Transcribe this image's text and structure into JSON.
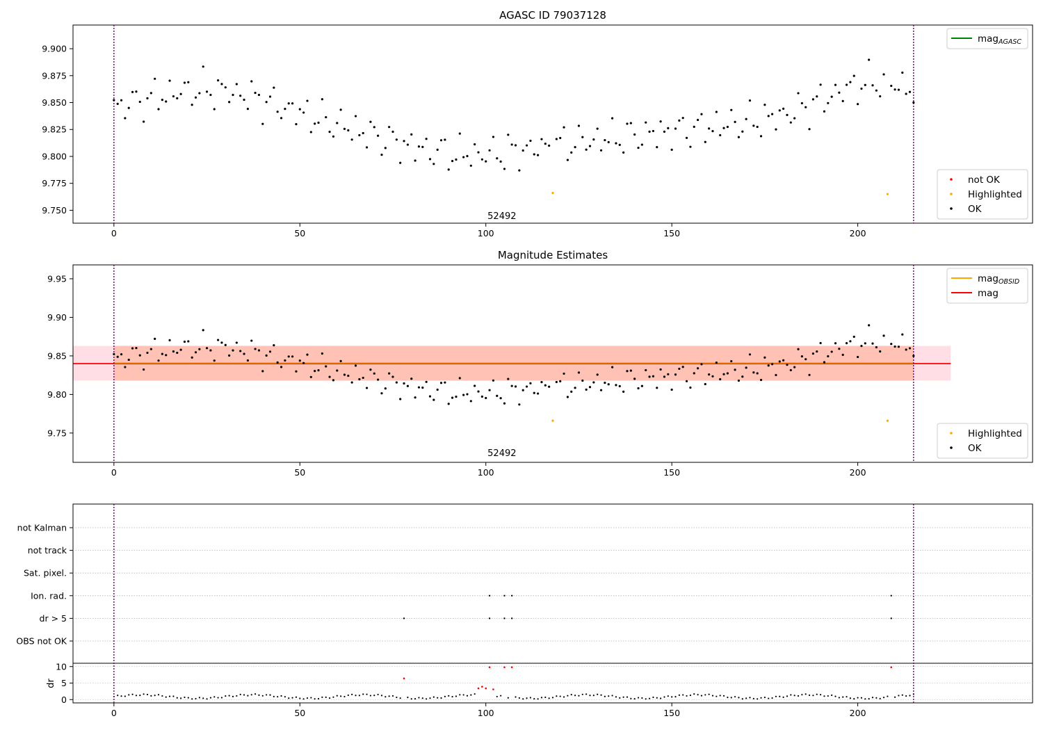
{
  "chart_data": [
    {
      "type": "scatter",
      "title": "AGASC ID 79037128",
      "xlim": [
        -11,
        247
      ],
      "ylim": [
        9.738,
        9.922
      ],
      "xticks": [
        0,
        50,
        100,
        150,
        200
      ],
      "yticks": [
        9.75,
        9.775,
        9.8,
        9.825,
        9.85,
        9.875,
        9.9
      ],
      "ytick_labels": [
        "9.750",
        "9.775",
        "9.800",
        "9.825",
        "9.850",
        "9.875",
        "9.900"
      ],
      "vlines": [
        0,
        215
      ],
      "annotation": {
        "text": "52492",
        "x": 107.5,
        "y": 9.742
      },
      "legend_upper": {
        "position": "top-right",
        "entries": [
          {
            "label": "mag",
            "subscript": "AGASC",
            "color": "#008000"
          }
        ]
      },
      "legend_lower": {
        "position": "bottom-right",
        "entries": [
          {
            "label": "not OK",
            "color": "#ff0000"
          },
          {
            "label": "Highlighted",
            "color": "#ffa500"
          },
          {
            "label": "OK",
            "color": "#000000"
          }
        ]
      },
      "highlighted": {
        "x": [
          118,
          208
        ],
        "y": [
          9.766,
          9.765
        ]
      },
      "not_ok": {
        "x": [],
        "y": []
      }
    },
    {
      "type": "scatter",
      "title": "Magnitude Estimates",
      "xlim": [
        -11,
        247
      ],
      "ylim": [
        9.712,
        9.968
      ],
      "xticks": [
        0,
        50,
        100,
        150,
        200
      ],
      "yticks": [
        9.75,
        9.8,
        9.85,
        9.9,
        9.95
      ],
      "ytick_labels": [
        "9.75",
        "9.80",
        "9.85",
        "9.90",
        "9.95"
      ],
      "vlines": [
        0,
        215
      ],
      "annotation": {
        "text": "52492",
        "x": 107.5,
        "y": 9.72
      },
      "mag": 9.84,
      "mag_obsid": 9.841,
      "band_mag": {
        "x": [
          -11,
          225
        ],
        "y": [
          9.818,
          9.863
        ],
        "color": "#ffc0cb"
      },
      "band_obsid": {
        "x": [
          0,
          215
        ],
        "y": [
          9.818,
          9.863
        ],
        "color": "#ffa07a"
      },
      "legend_upper": {
        "position": "top-right",
        "entries": [
          {
            "label": "mag",
            "subscript": "OBSID",
            "color": "#ffa500"
          },
          {
            "label": "mag",
            "subscript": "",
            "color": "#ff0000"
          }
        ]
      },
      "legend_lower": {
        "position": "bottom-right",
        "entries": [
          {
            "label": "Highlighted",
            "color": "#ffa500"
          },
          {
            "label": "OK",
            "color": "#000000"
          }
        ]
      },
      "highlighted": {
        "x": [
          118,
          208
        ],
        "y": [
          9.766,
          9.766
        ]
      }
    },
    {
      "type": "scatter",
      "title": "",
      "xlim": [
        -11,
        247
      ],
      "xticks": [
        0,
        50,
        100,
        150,
        200
      ],
      "vlines": [
        0,
        215
      ],
      "flag_labels": [
        "not Kalman",
        "not track",
        "Sat. pixel.",
        "Ion. rad.",
        "dr > 5",
        "OBS not OK"
      ],
      "flags": {
        "Ion. rad.": [
          101,
          105,
          107,
          209
        ],
        "dr > 5": [
          78,
          101,
          105,
          107,
          209
        ]
      },
      "dr_ylabel": "dr",
      "dr_yticks": [
        0,
        5,
        10
      ],
      "dr_ylim": [
        -1,
        11
      ],
      "dr_red": {
        "x": [
          78,
          98,
          99,
          100,
          101,
          102,
          105,
          107,
          209
        ],
        "y": [
          6.4,
          3.4,
          3.9,
          3.4,
          9.8,
          3.1,
          9.8,
          9.8,
          9.8
        ]
      }
    }
  ],
  "colors": {
    "vline": "#800080",
    "ok": "#000000",
    "highlighted": "#ffa500",
    "not_ok": "#ff0000",
    "grid": "#b0b0b0"
  }
}
